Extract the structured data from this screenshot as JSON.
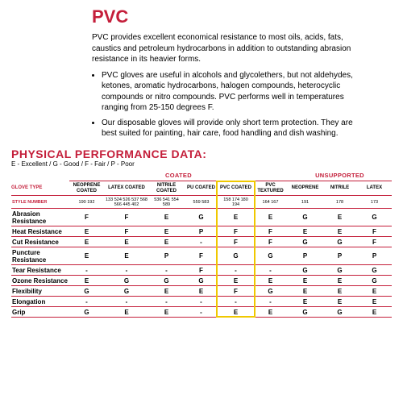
{
  "title": "PVC",
  "intro": "PVC provides excellent economical  resistance to most oils, acids, fats, caustics and petroleum hydrocarbons in addition to outstanding abrasion resistance in its heavier forms.",
  "bullets": [
    "PVC gloves are useful in alcohols and  glycolethers, but not aldehydes, ketones, aromatic hydrocarbons, halogen compounds, heterocyclic compounds or nitro compounds. PVC performs well in temperatures ranging from 25-150 degrees F.",
    "Our disposable gloves will provide only short term protection. They are best suited for painting, hair care, food handling and dish washing."
  ],
  "section_title": "PHYSICAL PERFORMANCE DATA:",
  "legend": "E - Excellent / G - Good / F - Fair / P - Poor",
  "group_headers": {
    "coated": "COATED",
    "unsupported": "UNSUPPORTED"
  },
  "glove_type_label": "GLOVE TYPE",
  "style_number_label": "STYLE NUMBER",
  "columns": [
    {
      "name": "NEOPRENE COATED",
      "styles": "190 192"
    },
    {
      "name": "LATEX COATED",
      "styles": "133 524 526 537 568 566 445 402"
    },
    {
      "name": "NITRILE COATED",
      "styles": "536 541 554 589"
    },
    {
      "name": "PU COATED",
      "styles": "559 583"
    },
    {
      "name": "PVC COATED",
      "styles": "158 174 180 194"
    },
    {
      "name": "PVC TEXTURED",
      "styles": "164 167"
    },
    {
      "name": "NEOPRENE",
      "styles": "191"
    },
    {
      "name": "NITRILE",
      "styles": "178"
    },
    {
      "name": "LATEX",
      "styles": "173"
    }
  ],
  "rows": [
    {
      "label": "Abrasion Resistance",
      "vals": [
        "F",
        "F",
        "E",
        "G",
        "E",
        "E",
        "G",
        "E",
        "G"
      ]
    },
    {
      "label": "Heat Resistance",
      "vals": [
        "E",
        "F",
        "E",
        "P",
        "F",
        "F",
        "E",
        "E",
        "F"
      ]
    },
    {
      "label": "Cut Resistance",
      "vals": [
        "E",
        "E",
        "E",
        "-",
        "F",
        "F",
        "G",
        "G",
        "F"
      ]
    },
    {
      "label": "Puncture Resistance",
      "vals": [
        "E",
        "E",
        "P",
        "F",
        "G",
        "G",
        "P",
        "P",
        "P"
      ]
    },
    {
      "label": "Tear Resistance",
      "vals": [
        "-",
        "-",
        "-",
        "F",
        "-",
        "-",
        "G",
        "G",
        "G"
      ]
    },
    {
      "label": "Ozone Resistance",
      "vals": [
        "E",
        "G",
        "G",
        "G",
        "E",
        "E",
        "E",
        "E",
        "G"
      ]
    },
    {
      "label": "Flexibility",
      "vals": [
        "G",
        "G",
        "E",
        "E",
        "F",
        "G",
        "E",
        "E",
        "E"
      ]
    },
    {
      "label": "Elongation",
      "vals": [
        "-",
        "-",
        "-",
        "-",
        "-",
        "-",
        "E",
        "E",
        "E"
      ]
    },
    {
      "label": "Grip",
      "vals": [
        "G",
        "E",
        "E",
        "-",
        "E",
        "E",
        "G",
        "G",
        "E"
      ]
    }
  ],
  "highlight": {
    "col_start": 4,
    "col_span": 1,
    "color": "#f0c800"
  }
}
